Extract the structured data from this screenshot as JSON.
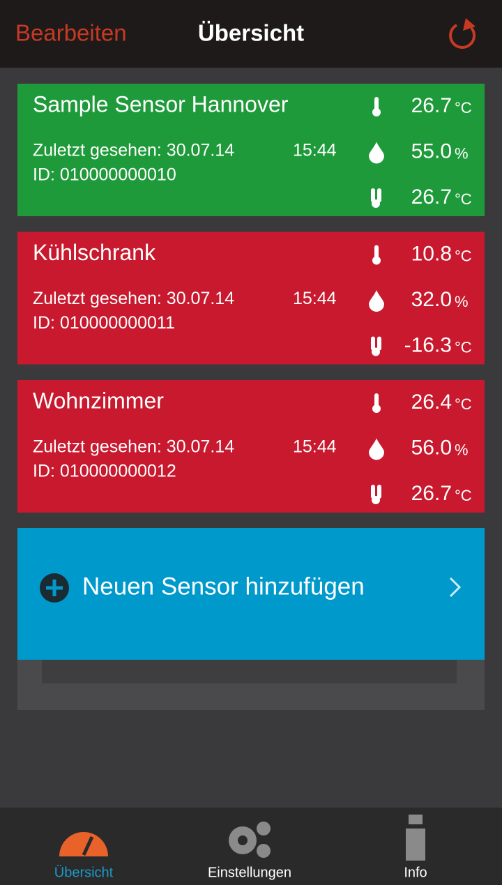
{
  "header": {
    "edit": "Bearbeiten",
    "title": "Übersicht"
  },
  "sensors": [
    {
      "name": "Sample Sensor Hannover",
      "last_seen": "Zuletzt gesehen: 30.07.14",
      "time": "15:44",
      "id": "ID: 010000000010",
      "status": "ok",
      "readings": [
        {
          "value": "26.7",
          "unit": "°C"
        },
        {
          "value": "55.0",
          "unit": "%"
        },
        {
          "value": "26.7",
          "unit": "°C"
        }
      ]
    },
    {
      "name": "Kühlschrank",
      "last_seen": "Zuletzt gesehen: 30.07.14",
      "time": "15:44",
      "id": "ID: 010000000011",
      "status": "alert",
      "readings": [
        {
          "value": "10.8",
          "unit": "°C"
        },
        {
          "value": "32.0",
          "unit": "%"
        },
        {
          "value": "-16.3",
          "unit": "°C"
        }
      ]
    },
    {
      "name": "Wohnzimmer",
      "last_seen": "Zuletzt gesehen: 30.07.14",
      "time": "15:44",
      "id": "ID: 010000000012",
      "status": "alert",
      "readings": [
        {
          "value": "26.4",
          "unit": "°C"
        },
        {
          "value": "56.0",
          "unit": "%"
        },
        {
          "value": "26.7",
          "unit": "°C"
        }
      ]
    }
  ],
  "add_button": {
    "label": "Neuen Sensor hinzufügen"
  },
  "tabs": [
    {
      "label": "Übersicht",
      "active": true
    },
    {
      "label": "Einstellungen",
      "active": false
    },
    {
      "label": "Info",
      "active": false
    }
  ]
}
